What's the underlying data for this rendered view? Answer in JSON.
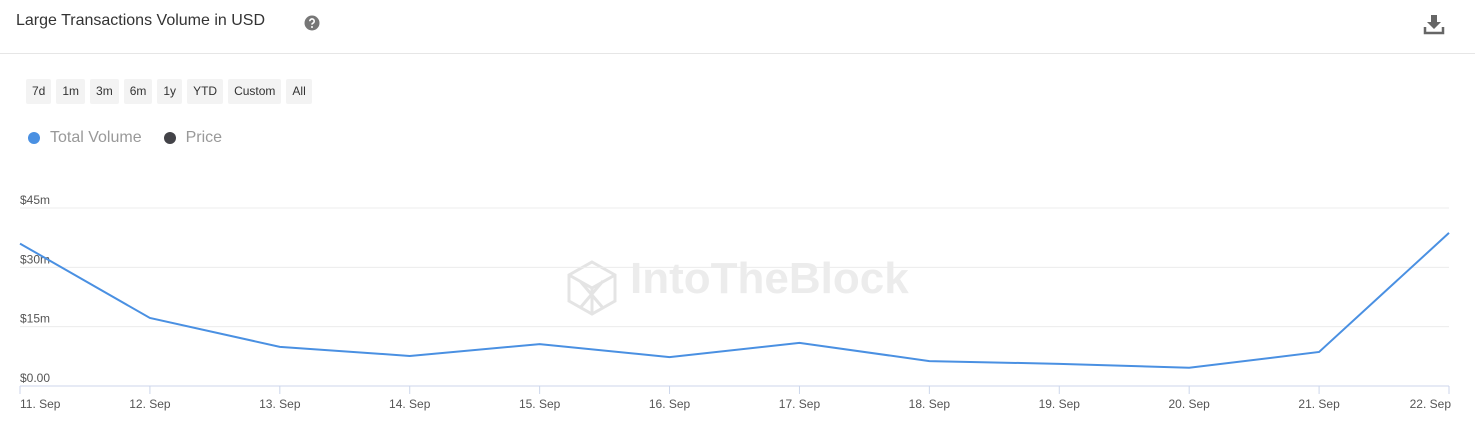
{
  "chart_data": {
    "type": "line",
    "title": "Large Transactions Volume in USD",
    "categories": [
      "11. Sep",
      "12. Sep",
      "13. Sep",
      "14. Sep",
      "15. Sep",
      "16. Sep",
      "17. Sep",
      "18. Sep",
      "19. Sep",
      "20. Sep",
      "21. Sep",
      "22. Sep"
    ],
    "series": [
      {
        "name": "Total Volume",
        "color": "#4a90e2",
        "values": [
          36000000,
          17200000,
          9900000,
          7600000,
          10600000,
          7300000,
          10900000,
          6300000,
          5600000,
          4600000,
          8600000,
          38700000
        ]
      },
      {
        "name": "Price",
        "color": "#434348",
        "values": [
          null,
          null,
          null,
          null,
          null,
          null,
          null,
          null,
          null,
          null,
          null,
          null
        ]
      }
    ],
    "ylim": [
      0,
      45000000
    ],
    "yticks": [
      {
        "value": 0,
        "label": "$0.00"
      },
      {
        "value": 15000000,
        "label": "$15m"
      },
      {
        "value": 30000000,
        "label": "$30m"
      },
      {
        "value": 45000000,
        "label": "$45m"
      }
    ],
    "grid": true
  },
  "toolbar": {
    "buttons": [
      "7d",
      "1m",
      "3m",
      "6m",
      "1y",
      "YTD",
      "Custom",
      "All"
    ]
  },
  "watermark": "IntoTheBlock"
}
